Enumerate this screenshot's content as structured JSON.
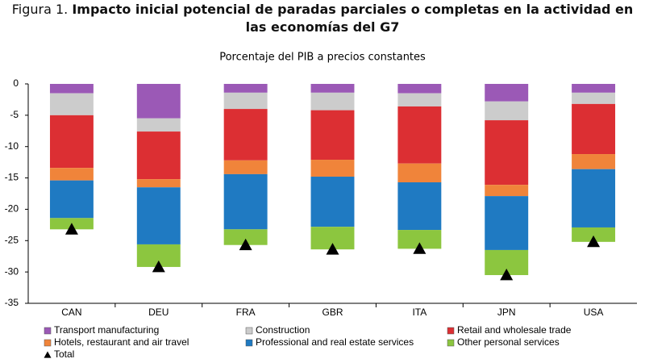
{
  "chart_data": {
    "type": "stacked_bar",
    "figure_label": "Figura 1.",
    "title": "Impacto inicial potencial de paradas parciales o completas en la actividad en las economías del G7",
    "subtitle": "Porcentaje del PIB a precios constantes",
    "categories": [
      "CAN",
      "DEU",
      "FRA",
      "GBR",
      "ITA",
      "JPN",
      "USA"
    ],
    "series": [
      {
        "name": "Transport manufacturing",
        "color": "#9b59b6",
        "values": [
          -1.5,
          -5.5,
          -1.4,
          -1.4,
          -1.5,
          -2.8,
          -1.4
        ]
      },
      {
        "name": "Construction",
        "color": "#cccccc",
        "values": [
          -3.5,
          -2.1,
          -2.6,
          -2.8,
          -2.1,
          -3.0,
          -1.8
        ]
      },
      {
        "name": "Retail and wholesale trade",
        "color": "#dc2f33",
        "values": [
          -8.4,
          -7.6,
          -8.2,
          -7.9,
          -9.1,
          -10.3,
          -8.0
        ]
      },
      {
        "name": "Hotels, restaurant and air travel",
        "color": "#f0843a",
        "values": [
          -2.0,
          -1.3,
          -2.2,
          -2.7,
          -3.0,
          -1.8,
          -2.4
        ]
      },
      {
        "name": "Professional and real estate services",
        "color": "#1f7ac2",
        "values": [
          -6.0,
          -9.1,
          -8.8,
          -8.0,
          -7.6,
          -8.6,
          -9.3
        ]
      },
      {
        "name": "Other personal services",
        "color": "#8cc63f",
        "values": [
          -1.8,
          -3.6,
          -2.5,
          -3.6,
          -3.0,
          -4.0,
          -2.3
        ]
      }
    ],
    "total": {
      "name": "Total",
      "color": "#000000",
      "values": [
        -23.2,
        -29.2,
        -25.7,
        -26.4,
        -26.3,
        -30.5,
        -25.2
      ]
    },
    "ylim": [
      -35,
      0
    ],
    "yticks": [
      0,
      -5,
      -10,
      -15,
      -20,
      -25,
      -30,
      -35
    ],
    "grid": false
  }
}
